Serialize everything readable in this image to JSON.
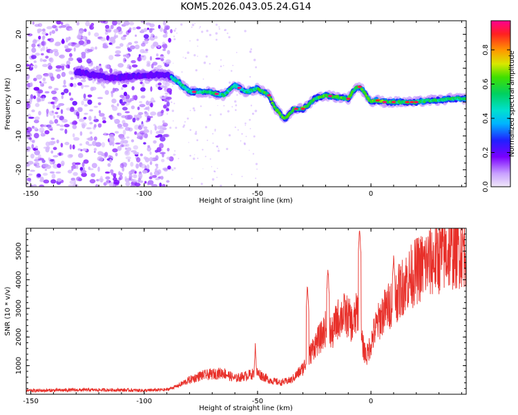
{
  "title": "KOM5.2026.043.05.24.G14",
  "chart_data": [
    {
      "type": "heatmap",
      "name": "spectrogram",
      "xlabel": "Height of straight line (km)",
      "ylabel": "Frequency (Hz)",
      "xlim": [
        -152,
        42
      ],
      "ylim": [
        -25,
        24
      ],
      "xticks": [
        -150,
        -100,
        -50,
        0
      ],
      "yticks": [
        -20,
        -10,
        0,
        10,
        20
      ],
      "colorbar": {
        "label": "Normalized spectral amplitude",
        "range": [
          0,
          0.97
        ],
        "ticks": [
          "0.0",
          "0.2",
          "0.4",
          "0.6",
          "0.8"
        ],
        "tick_values": [
          0.0,
          0.2,
          0.4,
          0.6,
          0.8
        ]
      },
      "ridge": {
        "x": [
          -130,
          -115,
          -100,
          -90,
          -85,
          -80,
          -72,
          -65,
          -60,
          -55,
          -50,
          -45,
          -42,
          -38,
          -34,
          -30,
          -28,
          -25,
          -20,
          -15,
          -10,
          -7,
          -5,
          -3,
          0,
          3,
          6,
          10,
          15,
          20,
          25,
          30,
          35,
          42
        ],
        "y": [
          9,
          7,
          8,
          8,
          6,
          3,
          3,
          2,
          5,
          3,
          4,
          2,
          -2,
          -5,
          -2,
          -2,
          -1,
          1,
          2,
          1.5,
          1,
          4,
          4.5,
          3,
          0,
          0.5,
          0,
          0,
          0,
          0,
          0.5,
          0.5,
          1,
          1
        ]
      }
    },
    {
      "type": "line",
      "name": "snr",
      "xlabel": "Height of straight line (km)",
      "ylabel": "SNR (10 * v/v)",
      "xlim": [
        -152,
        42
      ],
      "ylim": [
        0,
        5800
      ],
      "xticks": [
        -150,
        -100,
        -50,
        0
      ],
      "yticks": [
        1000,
        2000,
        3000,
        4000,
        5000
      ],
      "color": "#e8302a",
      "trend": {
        "x": [
          -152,
          -130,
          -110,
          -100,
          -90,
          -85,
          -80,
          -75,
          -70,
          -65,
          -60,
          -55,
          -50,
          -45,
          -40,
          -35,
          -30,
          -28,
          -25,
          -22,
          -20,
          -17,
          -15,
          -12,
          -10,
          -8,
          -6,
          -5,
          -4,
          -2,
          0,
          2,
          5,
          8,
          10,
          15,
          20,
          25,
          30,
          35,
          42
        ],
        "y": [
          120,
          150,
          150,
          130,
          160,
          300,
          500,
          650,
          700,
          750,
          550,
          650,
          750,
          500,
          400,
          500,
          900,
          1200,
          1700,
          2000,
          2300,
          2100,
          2600,
          2800,
          2700,
          2400,
          2900,
          3000,
          1800,
          1300,
          1800,
          2300,
          2800,
          3100,
          3300,
          3900,
          4300,
          4600,
          4800,
          5000,
          5150
        ]
      },
      "spikes": [
        {
          "x": -5,
          "y": 5800
        },
        {
          "x": -28,
          "y": 3800
        },
        {
          "x": -19,
          "y": 4400
        },
        {
          "x": 10,
          "y": 4800
        },
        {
          "x": -51,
          "y": 1700
        }
      ]
    }
  ]
}
